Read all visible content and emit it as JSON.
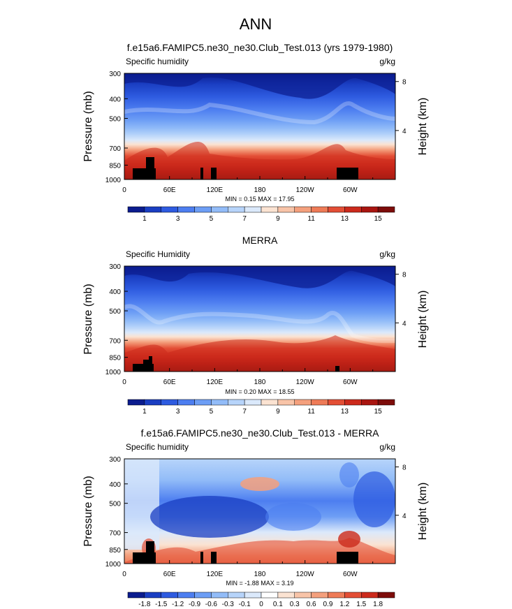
{
  "page_title": "ANN",
  "chart_data": [
    {
      "type": "heatmap",
      "title": "f.e15a6.FAMIPC5.ne30_ne30.Club_Test.013 (yrs 1979-1980)",
      "left_label": "Specific humidity",
      "right_label": "g/kg",
      "ylabel": "Pressure (mb)",
      "y2label": "Height (km)",
      "y_ticks": [
        "300",
        "400",
        "500",
        "700",
        "850",
        "1000"
      ],
      "y2_ticks": [
        "8",
        "4"
      ],
      "x_ticks": [
        "0",
        "60E",
        "120E",
        "180",
        "120W",
        "60W"
      ],
      "stats": "MIN =   0.15  MAX =   17.95",
      "colorbar_labels": [
        "1",
        "3",
        "5",
        "7",
        "9",
        "11",
        "13",
        "15"
      ],
      "colorbar_colors": [
        "#0b1c8e",
        "#1a3ec2",
        "#2e5be0",
        "#4d7ef0",
        "#6d9ef5",
        "#92bcf8",
        "#b7d4fa",
        "#dbe9fb",
        "#fbe3d2",
        "#f8c4a8",
        "#f4a07d",
        "#ee7b57",
        "#e34e35",
        "#cc2a1c",
        "#a91510",
        "#7d0c0a"
      ],
      "min": 0.15,
      "max": 17.95
    },
    {
      "type": "heatmap",
      "title": "MERRA",
      "left_label": "Specific Humidity",
      "right_label": "g/kg",
      "ylabel": "Pressure (mb)",
      "y2label": "Height (km)",
      "y_ticks": [
        "300",
        "400",
        "500",
        "700",
        "850",
        "1000"
      ],
      "y2_ticks": [
        "8",
        "4"
      ],
      "x_ticks": [
        "0",
        "60E",
        "120E",
        "180",
        "120W",
        "60W"
      ],
      "stats": "MIN =   0.20  MAX =   18.55",
      "colorbar_labels": [
        "1",
        "3",
        "5",
        "7",
        "9",
        "11",
        "13",
        "15"
      ],
      "colorbar_colors": [
        "#0b1c8e",
        "#1a3ec2",
        "#2e5be0",
        "#4d7ef0",
        "#6d9ef5",
        "#92bcf8",
        "#b7d4fa",
        "#dbe9fb",
        "#fbe3d2",
        "#f8c4a8",
        "#f4a07d",
        "#ee7b57",
        "#e34e35",
        "#cc2a1c",
        "#a91510",
        "#7d0c0a"
      ],
      "min": 0.2,
      "max": 18.55
    },
    {
      "type": "heatmap",
      "title": "f.e15a6.FAMIPC5.ne30_ne30.Club_Test.013 - MERRA",
      "left_label": "Specific humidity",
      "right_label": "g/kg",
      "ylabel": "Pressure (mb)",
      "y2label": "Height (km)",
      "y_ticks": [
        "300",
        "400",
        "500",
        "700",
        "850",
        "1000"
      ],
      "y2_ticks": [
        "8",
        "4"
      ],
      "x_ticks": [
        "0",
        "60E",
        "120E",
        "180",
        "120W",
        "60W"
      ],
      "stats": "MIN =  -1.88  MAX =   3.19",
      "colorbar_labels": [
        "-1.8",
        "-1.5",
        "-1.2",
        "-0.9",
        "-0.6",
        "-0.3",
        "-0.1",
        "0",
        "0.1",
        "0.3",
        "0.6",
        "0.9",
        "1.2",
        "1.5",
        "1.8"
      ],
      "colorbar_colors": [
        "#0b1c8e",
        "#1a3ec2",
        "#2e5be0",
        "#4d7ef0",
        "#6d9ef5",
        "#92bcf8",
        "#b7d4fa",
        "#dbe9fb",
        "#ffffff",
        "#fbe3d2",
        "#f8c4a8",
        "#f4a07d",
        "#ee7b57",
        "#e34e35",
        "#cc2a1c",
        "#7d0c0a"
      ],
      "min": -1.88,
      "max": 3.19
    }
  ]
}
